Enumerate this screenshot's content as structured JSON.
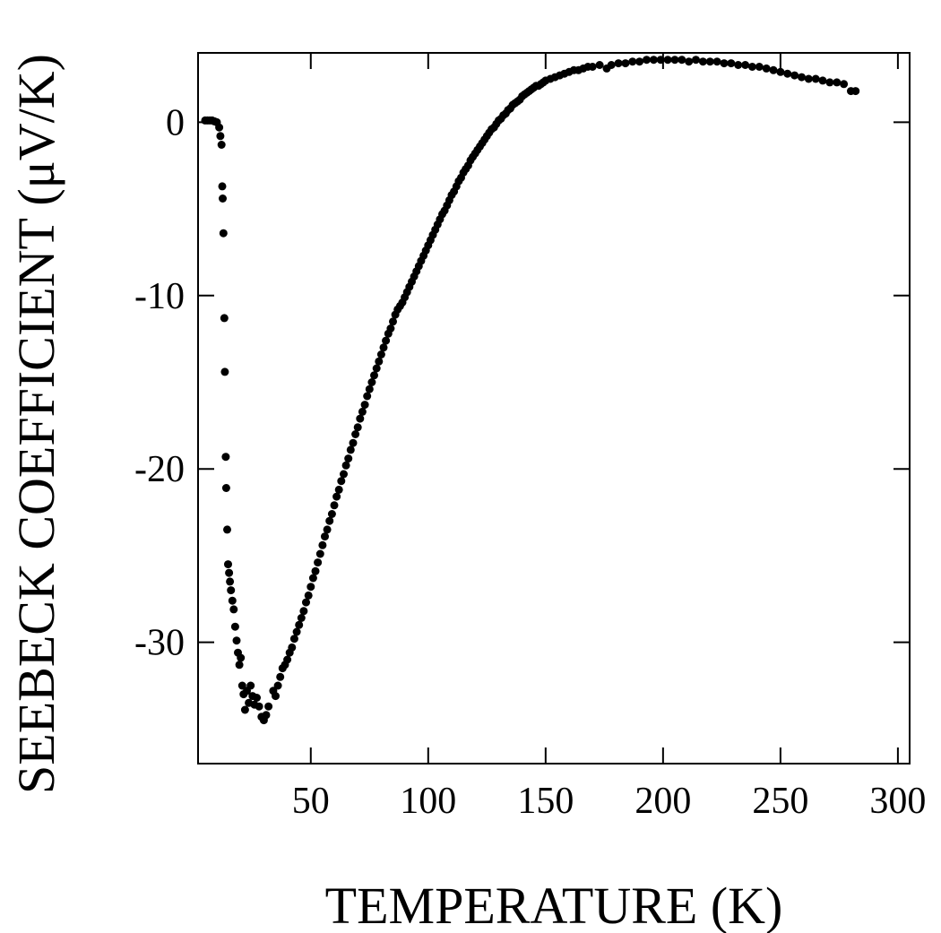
{
  "chart_data": {
    "type": "scatter",
    "xlabel": "TEMPERATURE (K)",
    "ylabel": "SEEBECK COEFFICIENT (μV/K)",
    "xlim": [
      2,
      305
    ],
    "ylim": [
      -37,
      4
    ],
    "x_ticks": [
      50,
      100,
      150,
      200,
      250,
      300
    ],
    "x_tick_labels": [
      "50",
      "100",
      "150",
      "200",
      "250",
      "300"
    ],
    "y_ticks": [
      0,
      -10,
      -20,
      -30
    ],
    "y_tick_labels": [
      "0",
      "-10",
      "-20",
      "-30"
    ],
    "grid": false,
    "legend": "none",
    "marker_color": "#000000",
    "series": [
      {
        "points": [
          [
            5,
            0.1
          ],
          [
            6,
            0.1
          ],
          [
            7,
            0.1
          ],
          [
            8,
            0.1
          ],
          [
            9,
            0.05
          ],
          [
            10,
            0.0
          ],
          [
            11,
            -0.3
          ],
          [
            11.5,
            -0.8
          ],
          [
            12,
            -1.3
          ],
          [
            12.3,
            -3.7
          ],
          [
            12.5,
            -4.4
          ],
          [
            12.8,
            -6.4
          ],
          [
            13.2,
            -11.3
          ],
          [
            13.4,
            -14.4
          ],
          [
            13.8,
            -19.3
          ],
          [
            14,
            -21.1
          ],
          [
            14.4,
            -23.5
          ],
          [
            14.8,
            -25.5
          ],
          [
            15.2,
            -26.0
          ],
          [
            15.6,
            -26.5
          ],
          [
            16,
            -27.0
          ],
          [
            16.6,
            -27.6
          ],
          [
            17.2,
            -28.1
          ],
          [
            17.8,
            -29.1
          ],
          [
            18.4,
            -29.9
          ],
          [
            19,
            -30.6
          ],
          [
            19.6,
            -31.3
          ],
          [
            20.2,
            -30.9
          ],
          [
            20.8,
            -32.5
          ],
          [
            21.4,
            -33.0
          ],
          [
            22,
            -33.9
          ],
          [
            22.8,
            -32.8
          ],
          [
            23.6,
            -33.5
          ],
          [
            24.4,
            -32.5
          ],
          [
            25.2,
            -33.1
          ],
          [
            26,
            -33.6
          ],
          [
            27,
            -33.2
          ],
          [
            28,
            -33.7
          ],
          [
            29,
            -34.3
          ],
          [
            30,
            -34.5
          ],
          [
            31,
            -34.2
          ],
          [
            32,
            -33.7
          ],
          [
            34,
            -32.8
          ],
          [
            35,
            -33.1
          ],
          [
            36,
            -32.5
          ],
          [
            37,
            -32.0
          ],
          [
            38,
            -31.5
          ],
          [
            39,
            -31.3
          ],
          [
            40,
            -31.0
          ],
          [
            41,
            -30.6
          ],
          [
            42,
            -30.3
          ],
          [
            43,
            -29.8
          ],
          [
            44,
            -29.4
          ],
          [
            45,
            -29.0
          ],
          [
            46,
            -28.6
          ],
          [
            47,
            -28.2
          ],
          [
            48,
            -27.7
          ],
          [
            49,
            -27.3
          ],
          [
            50,
            -26.8
          ],
          [
            51,
            -26.3
          ],
          [
            52,
            -25.9
          ],
          [
            53,
            -25.4
          ],
          [
            54,
            -24.9
          ],
          [
            55,
            -24.4
          ],
          [
            56,
            -23.9
          ],
          [
            57,
            -23.5
          ],
          [
            58,
            -23.0
          ],
          [
            59,
            -22.6
          ],
          [
            60,
            -22.1
          ],
          [
            61,
            -21.6
          ],
          [
            62,
            -21.2
          ],
          [
            63,
            -20.7
          ],
          [
            64,
            -20.3
          ],
          [
            65,
            -19.8
          ],
          [
            66,
            -19.4
          ],
          [
            67,
            -18.9
          ],
          [
            68,
            -18.5
          ],
          [
            69,
            -18.0
          ],
          [
            70,
            -17.6
          ],
          [
            71,
            -17.1
          ],
          [
            72,
            -16.7
          ],
          [
            73,
            -16.3
          ],
          [
            74,
            -15.8
          ],
          [
            75,
            -15.4
          ],
          [
            76,
            -15.0
          ],
          [
            77,
            -14.6
          ],
          [
            78,
            -14.2
          ],
          [
            79,
            -13.8
          ],
          [
            80,
            -13.4
          ],
          [
            81,
            -13.0
          ],
          [
            82,
            -12.6
          ],
          [
            83,
            -12.2
          ],
          [
            84,
            -11.9
          ],
          [
            85,
            -11.5
          ],
          [
            86,
            -11.1
          ],
          [
            87,
            -10.8
          ],
          [
            88,
            -10.6
          ],
          [
            89,
            -10.4
          ],
          [
            90,
            -10.1
          ],
          [
            91,
            -9.8
          ],
          [
            92,
            -9.5
          ],
          [
            93,
            -9.2
          ],
          [
            94,
            -8.9
          ],
          [
            95,
            -8.6
          ],
          [
            96,
            -8.3
          ],
          [
            97,
            -8.0
          ],
          [
            98,
            -7.7
          ],
          [
            99,
            -7.4
          ],
          [
            100,
            -7.1
          ],
          [
            101,
            -6.8
          ],
          [
            102,
            -6.5
          ],
          [
            103,
            -6.2
          ],
          [
            104,
            -5.9
          ],
          [
            105,
            -5.6
          ],
          [
            106,
            -5.3
          ],
          [
            107,
            -5.1
          ],
          [
            108,
            -4.8
          ],
          [
            109,
            -4.5
          ],
          [
            110,
            -4.2
          ],
          [
            111,
            -4.0
          ],
          [
            112,
            -3.7
          ],
          [
            113,
            -3.4
          ],
          [
            114,
            -3.2
          ],
          [
            115,
            -2.9
          ],
          [
            116,
            -2.7
          ],
          [
            117,
            -2.5
          ],
          [
            118,
            -2.2
          ],
          [
            119,
            -2.0
          ],
          [
            120,
            -1.8
          ],
          [
            121,
            -1.6
          ],
          [
            122,
            -1.4
          ],
          [
            123,
            -1.2
          ],
          [
            124,
            -1.0
          ],
          [
            125,
            -0.8
          ],
          [
            126,
            -0.6
          ],
          [
            127,
            -0.4
          ],
          [
            128,
            -0.3
          ],
          [
            129,
            -0.1
          ],
          [
            130,
            0.1
          ],
          [
            131,
            0.2
          ],
          [
            132,
            0.4
          ],
          [
            133,
            0.5
          ],
          [
            134,
            0.7
          ],
          [
            135,
            0.8
          ],
          [
            136,
            1.0
          ],
          [
            137,
            1.1
          ],
          [
            138,
            1.2
          ],
          [
            139,
            1.3
          ],
          [
            140,
            1.5
          ],
          [
            141,
            1.6
          ],
          [
            142,
            1.7
          ],
          [
            143,
            1.8
          ],
          [
            144,
            1.9
          ],
          [
            145,
            2.0
          ],
          [
            146,
            2.1
          ],
          [
            147,
            2.1
          ],
          [
            148,
            2.2
          ],
          [
            149,
            2.3
          ],
          [
            150,
            2.4
          ],
          [
            152,
            2.5
          ],
          [
            154,
            2.6
          ],
          [
            156,
            2.7
          ],
          [
            158,
            2.8
          ],
          [
            160,
            2.9
          ],
          [
            162,
            3.0
          ],
          [
            164,
            3.0
          ],
          [
            166,
            3.1
          ],
          [
            168,
            3.2
          ],
          [
            170,
            3.2
          ],
          [
            173,
            3.3
          ],
          [
            176,
            3.1
          ],
          [
            178,
            3.3
          ],
          [
            181,
            3.4
          ],
          [
            184,
            3.4
          ],
          [
            187,
            3.5
          ],
          [
            190,
            3.5
          ],
          [
            193,
            3.6
          ],
          [
            196,
            3.6
          ],
          [
            199,
            3.6
          ],
          [
            202,
            3.6
          ],
          [
            205,
            3.6
          ],
          [
            208,
            3.6
          ],
          [
            211,
            3.5
          ],
          [
            214,
            3.6
          ],
          [
            217,
            3.5
          ],
          [
            220,
            3.5
          ],
          [
            223,
            3.5
          ],
          [
            226,
            3.4
          ],
          [
            229,
            3.4
          ],
          [
            232,
            3.3
          ],
          [
            235,
            3.3
          ],
          [
            238,
            3.2
          ],
          [
            241,
            3.2
          ],
          [
            244,
            3.1
          ],
          [
            247,
            3.0
          ],
          [
            250,
            2.9
          ],
          [
            253,
            2.8
          ],
          [
            256,
            2.7
          ],
          [
            259,
            2.6
          ],
          [
            262,
            2.5
          ],
          [
            265,
            2.5
          ],
          [
            268,
            2.4
          ],
          [
            271,
            2.3
          ],
          [
            274,
            2.3
          ],
          [
            277,
            2.2
          ],
          [
            280,
            1.8
          ],
          [
            282,
            1.8
          ]
        ]
      }
    ]
  }
}
